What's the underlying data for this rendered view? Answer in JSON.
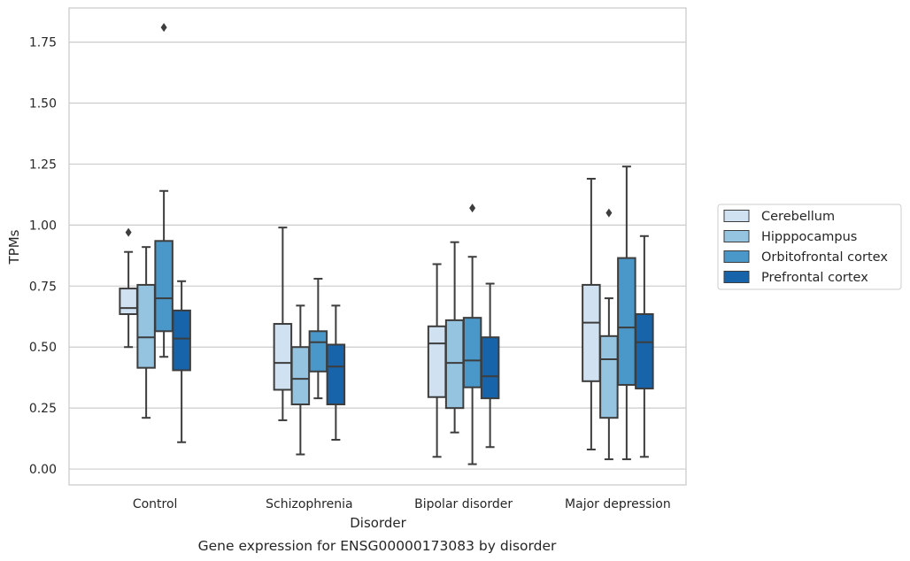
{
  "caption": "Gene expression for ENSG00000173083 by disorder",
  "chart_data": {
    "type": "box",
    "xlabel": "Disorder",
    "ylabel": "TPMs",
    "ylim": [
      -0.065,
      1.89
    ],
    "yticks": [
      "0.00",
      "0.25",
      "0.50",
      "0.75",
      "1.00",
      "1.25",
      "1.50",
      "1.75"
    ],
    "ytick_values": [
      0,
      0.25,
      0.5,
      0.75,
      1.0,
      1.25,
      1.5,
      1.75
    ],
    "grid": "horizontal",
    "legend_position": "right",
    "categories": [
      "Control",
      "Schizophrenia",
      "Bipolar disorder",
      "Major depression"
    ],
    "series": [
      {
        "name": "Cerebellum",
        "color": "#d0e1f2",
        "boxes": [
          {
            "whisker_low": 0.5,
            "q1": 0.635,
            "median": 0.66,
            "q3": 0.74,
            "whisker_high": 0.89,
            "outliers": [
              0.97
            ]
          },
          {
            "whisker_low": 0.2,
            "q1": 0.325,
            "median": 0.435,
            "q3": 0.595,
            "whisker_high": 0.99,
            "outliers": []
          },
          {
            "whisker_low": 0.05,
            "q1": 0.295,
            "median": 0.515,
            "q3": 0.585,
            "whisker_high": 0.84,
            "outliers": []
          },
          {
            "whisker_low": 0.08,
            "q1": 0.36,
            "median": 0.6,
            "q3": 0.755,
            "whisker_high": 1.19,
            "outliers": []
          }
        ]
      },
      {
        "name": "Hipppocampus",
        "color": "#94c4df",
        "boxes": [
          {
            "whisker_low": 0.21,
            "q1": 0.415,
            "median": 0.54,
            "q3": 0.755,
            "whisker_high": 0.91,
            "outliers": []
          },
          {
            "whisker_low": 0.06,
            "q1": 0.265,
            "median": 0.37,
            "q3": 0.5,
            "whisker_high": 0.67,
            "outliers": []
          },
          {
            "whisker_low": 0.15,
            "q1": 0.25,
            "median": 0.435,
            "q3": 0.61,
            "whisker_high": 0.93,
            "outliers": []
          },
          {
            "whisker_low": 0.04,
            "q1": 0.21,
            "median": 0.45,
            "q3": 0.545,
            "whisker_high": 0.7,
            "outliers": [
              1.05
            ]
          }
        ]
      },
      {
        "name": "Orbitofrontal cortex",
        "color": "#4a98c9",
        "boxes": [
          {
            "whisker_low": 0.46,
            "q1": 0.565,
            "median": 0.7,
            "q3": 0.935,
            "whisker_high": 1.14,
            "outliers": [
              1.81
            ]
          },
          {
            "whisker_low": 0.29,
            "q1": 0.4,
            "median": 0.52,
            "q3": 0.565,
            "whisker_high": 0.78,
            "outliers": []
          },
          {
            "whisker_low": 0.02,
            "q1": 0.335,
            "median": 0.445,
            "q3": 0.62,
            "whisker_high": 0.87,
            "outliers": [
              1.07
            ]
          },
          {
            "whisker_low": 0.04,
            "q1": 0.345,
            "median": 0.58,
            "q3": 0.865,
            "whisker_high": 1.24,
            "outliers": []
          }
        ]
      },
      {
        "name": "Prefrontal cortex",
        "color": "#1764ab",
        "boxes": [
          {
            "whisker_low": 0.11,
            "q1": 0.405,
            "median": 0.535,
            "q3": 0.65,
            "whisker_high": 0.77,
            "outliers": []
          },
          {
            "whisker_low": 0.12,
            "q1": 0.265,
            "median": 0.42,
            "q3": 0.51,
            "whisker_high": 0.67,
            "outliers": []
          },
          {
            "whisker_low": 0.09,
            "q1": 0.29,
            "median": 0.38,
            "q3": 0.54,
            "whisker_high": 0.76,
            "outliers": []
          },
          {
            "whisker_low": 0.05,
            "q1": 0.33,
            "median": 0.52,
            "q3": 0.635,
            "whisker_high": 0.955,
            "outliers": []
          }
        ]
      }
    ]
  }
}
